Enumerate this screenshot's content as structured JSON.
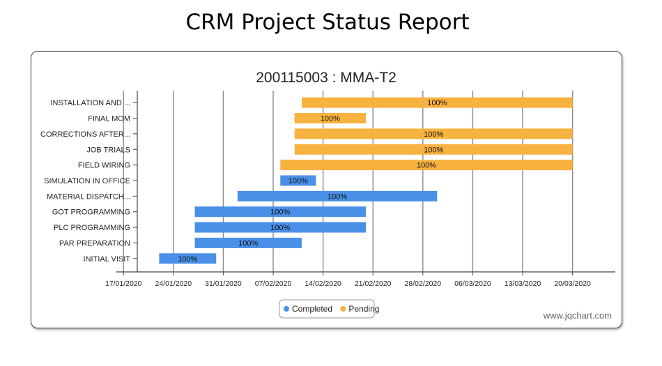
{
  "page_title": "CRM Project Status Report",
  "watermark": "www.jqchart.com",
  "colors": {
    "completed": "#4a90e8",
    "pending": "#f7b23f",
    "grid": "#8a8a8a",
    "axis": "#444444"
  },
  "chart_data": {
    "type": "bar",
    "orientation": "horizontal-gantt",
    "title": "200115003 : MMA-T2",
    "x_axis": {
      "type": "date",
      "ticks": [
        "17/01/2020",
        "24/01/2020",
        "31/01/2020",
        "07/02/2020",
        "14/02/2020",
        "21/02/2020",
        "28/02/2020",
        "06/03/2020",
        "13/03/2020",
        "20/03/2020"
      ],
      "range": [
        "2020-01-16",
        "2020-03-26"
      ]
    },
    "grid": true,
    "legend": {
      "placement": "bottom-center",
      "items": [
        {
          "name": "Completed",
          "color": "#4a90e8"
        },
        {
          "name": "Pending",
          "color": "#f7b23f"
        }
      ]
    },
    "tasks": [
      {
        "name": "INSTALLATION AND ...",
        "start": "2020-02-11",
        "end": "2020-03-20",
        "status": "Pending",
        "label": "100%"
      },
      {
        "name": "FINAL MOM",
        "start": "2020-02-10",
        "end": "2020-02-20",
        "status": "Pending",
        "label": "100%"
      },
      {
        "name": "CORRECTIONS AFTER...",
        "start": "2020-02-10",
        "end": "2020-03-20",
        "status": "Pending",
        "label": "100%"
      },
      {
        "name": "JOB TRIALS",
        "start": "2020-02-10",
        "end": "2020-03-20",
        "status": "Pending",
        "label": "100%"
      },
      {
        "name": "FIELD WIRING",
        "start": "2020-02-08",
        "end": "2020-03-20",
        "status": "Pending",
        "label": "100%"
      },
      {
        "name": "SIMULATION IN OFFICE",
        "start": "2020-02-08",
        "end": "2020-02-13",
        "status": "Completed",
        "label": "100%"
      },
      {
        "name": "MATERIAL DISPATCH...",
        "start": "2020-02-02",
        "end": "2020-03-01",
        "status": "Completed",
        "label": "100%"
      },
      {
        "name": "GOT PROGRAMMING",
        "start": "2020-01-27",
        "end": "2020-02-20",
        "status": "Completed",
        "label": "100%"
      },
      {
        "name": "PLC PROGRAMMING",
        "start": "2020-01-27",
        "end": "2020-02-20",
        "status": "Completed",
        "label": "100%"
      },
      {
        "name": "PAR PREPARATION",
        "start": "2020-01-27",
        "end": "2020-02-11",
        "status": "Completed",
        "label": "100%"
      },
      {
        "name": "INITIAL VISIT",
        "start": "2020-01-22",
        "end": "2020-01-30",
        "status": "Completed",
        "label": "100%"
      }
    ]
  }
}
